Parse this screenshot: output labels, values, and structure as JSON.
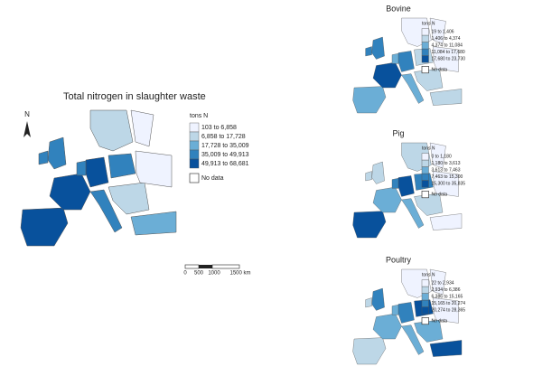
{
  "main": {
    "title": "Total nitrogen in slaughter waste",
    "north": "N",
    "legend": {
      "title": "tons N",
      "no_data": "No data",
      "classes": [
        {
          "label": "103 to 6,858",
          "color": "#eff3ff"
        },
        {
          "label": "6,858 to 17,728",
          "color": "#bdd7e7"
        },
        {
          "label": "17,728 to 35,009",
          "color": "#6baed6"
        },
        {
          "label": "35,009 to 49,913",
          "color": "#3182bd"
        },
        {
          "label": "49,913 to 68,681",
          "color": "#08519c"
        }
      ]
    },
    "scale": [
      "0",
      "500",
      "1000",
      "1500 km"
    ]
  },
  "panels": [
    {
      "title": "Bovine",
      "legend": {
        "title": "tons N",
        "no_data": "No data",
        "classes": [
          {
            "label": "19 to 1,406",
            "color": "#eff3ff"
          },
          {
            "label": "1,406 to 4,374",
            "color": "#bdd7e7"
          },
          {
            "label": "4,374 to 11,084",
            "color": "#6baed6"
          },
          {
            "label": "11,084 to 17,680",
            "color": "#3182bd"
          },
          {
            "label": "17,680 to 23,730",
            "color": "#08519c"
          }
        ]
      }
    },
    {
      "title": "Pig",
      "legend": {
        "title": "tons N",
        "no_data": "No data",
        "classes": [
          {
            "label": "0 to 1,180",
            "color": "#eff3ff"
          },
          {
            "label": "1,180 to 3,613",
            "color": "#bdd7e7"
          },
          {
            "label": "3,613 to 7,463",
            "color": "#6baed6"
          },
          {
            "label": "7,463 to 15,300",
            "color": "#3182bd"
          },
          {
            "label": "15,300 to 35,835",
            "color": "#08519c"
          }
        ]
      }
    },
    {
      "title": "Poultry",
      "legend": {
        "title": "tons N",
        "no_data": "No data",
        "classes": [
          {
            "label": "22 to 2,934",
            "color": "#eff3ff"
          },
          {
            "label": "2,934 to 6,386",
            "color": "#bdd7e7"
          },
          {
            "label": "6,386 to 15,165",
            "color": "#6baed6"
          },
          {
            "label": "15,165 to 20,274",
            "color": "#3182bd"
          },
          {
            "label": "20,274 to 28,365",
            "color": "#08519c"
          }
        ]
      }
    }
  ]
}
